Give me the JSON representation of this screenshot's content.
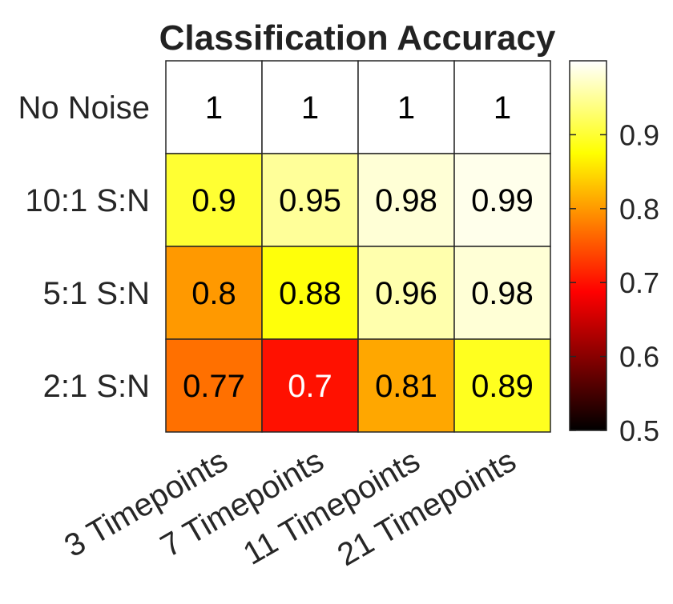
{
  "chart_data": {
    "type": "heatmap",
    "title": "Classification Accuracy",
    "rows": [
      "No Noise",
      "10:1 S:N",
      "5:1 S:N",
      "2:1 S:N"
    ],
    "columns": [
      "3 Timepoints",
      "7 Timepoints",
      "11 Timepoints",
      "21 Timepoints"
    ],
    "values": [
      [
        1,
        1,
        1,
        1
      ],
      [
        0.9,
        0.95,
        0.98,
        0.99
      ],
      [
        0.8,
        0.88,
        0.96,
        0.98
      ],
      [
        0.77,
        0.7,
        0.81,
        0.89
      ]
    ],
    "cell_labels": [
      [
        "1",
        "1",
        "1",
        "1"
      ],
      [
        "0.9",
        "0.95",
        "0.98",
        "0.99"
      ],
      [
        "0.8",
        "0.88",
        "0.96",
        "0.98"
      ],
      [
        "0.77",
        "0.7",
        "0.81",
        "0.89"
      ]
    ],
    "colormap": "hot",
    "color_limits": [
      0.5,
      1
    ],
    "colorbar": {
      "ticks": [
        0.5,
        0.6,
        0.7,
        0.8,
        0.9
      ],
      "tick_labels": [
        "0.5",
        "0.6",
        "0.7",
        "0.8",
        "0.9"
      ],
      "placement": "right"
    }
  }
}
